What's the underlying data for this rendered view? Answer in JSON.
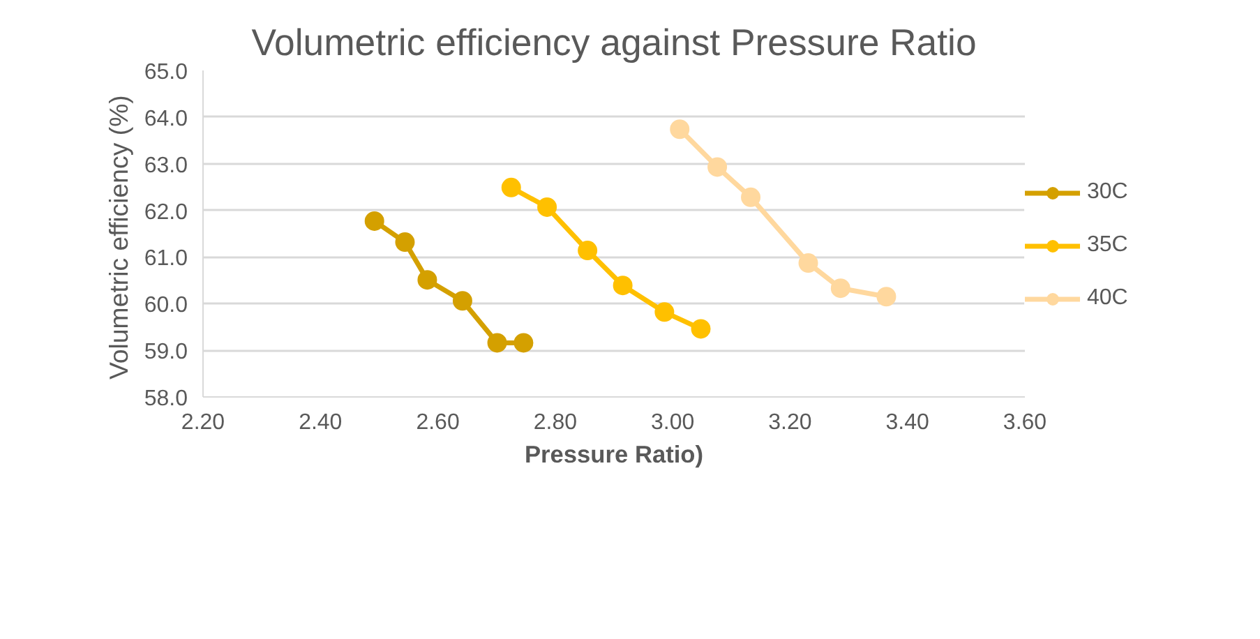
{
  "chart_data": {
    "type": "line",
    "title": "Volumetric efficiency against Pressure Ratio",
    "xlabel": "Pressure Ratio)",
    "ylabel": "Volumetric efficiency  (%)",
    "series": [
      {
        "name": "30C",
        "color": "#d4a000",
        "x": [
          2.492,
          2.544,
          2.582,
          2.642,
          2.701,
          2.746
        ],
        "values": [
          61.77,
          61.32,
          60.51,
          60.06,
          59.16,
          59.16
        ]
      },
      {
        "name": "35C",
        "color": "#ffc000",
        "x": [
          2.725,
          2.786,
          2.855,
          2.915,
          2.986,
          3.048
        ],
        "values": [
          62.49,
          62.07,
          61.14,
          60.39,
          59.82,
          59.46
        ]
      },
      {
        "name": "40C",
        "color": "#ffd89e",
        "x": [
          3.012,
          3.076,
          3.133,
          3.231,
          3.286,
          3.364
        ],
        "values": [
          63.74,
          62.93,
          62.28,
          60.87,
          60.33,
          60.15
        ]
      }
    ],
    "xlim": [
      2.2,
      3.6
    ],
    "xticks": [
      {
        "value": 2.2,
        "label": "2.20"
      },
      {
        "value": 2.4,
        "label": "2.40"
      },
      {
        "value": 2.6,
        "label": "2.60"
      },
      {
        "value": 2.8,
        "label": "2.80"
      },
      {
        "value": 3.0,
        "label": "3.00"
      },
      {
        "value": 3.2,
        "label": "3.20"
      },
      {
        "value": 3.4,
        "label": "3.40"
      },
      {
        "value": 3.6,
        "label": "3.60"
      }
    ],
    "ylim": [
      58,
      65
    ],
    "yticks": [
      {
        "value": 58,
        "label": "58.0"
      },
      {
        "value": 59,
        "label": "59.0"
      },
      {
        "value": 60,
        "label": "60.0"
      },
      {
        "value": 61,
        "label": "61.0"
      },
      {
        "value": 62,
        "label": "62.0"
      },
      {
        "value": 63,
        "label": "63.0"
      },
      {
        "value": 64,
        "label": "64.0"
      },
      {
        "value": 65,
        "label": "65.0"
      }
    ],
    "grid": "y",
    "legend": "right",
    "marker": "circle",
    "line_style": "solid"
  }
}
